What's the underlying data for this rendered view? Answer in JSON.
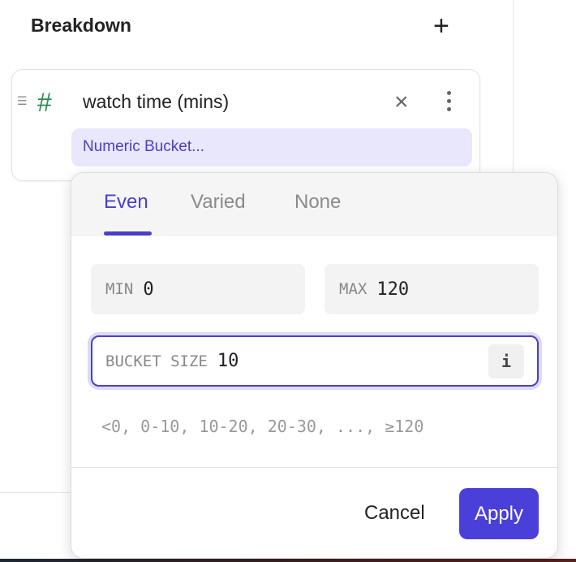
{
  "panel": {
    "title": "Breakdown",
    "add_icon": "plus-icon"
  },
  "breakdown_item": {
    "drag_icon": "drag-handle-icon",
    "type_icon": "hash-icon",
    "type_symbol": "#",
    "field": "watch time (mins)",
    "remove_symbol": "×",
    "bucket_label": "Numeric Bucket..."
  },
  "popover": {
    "tabs": [
      {
        "label": "Even",
        "active": true
      },
      {
        "label": "Varied",
        "active": false
      },
      {
        "label": "None",
        "active": false
      }
    ],
    "min": {
      "label": "MIN",
      "value": "0"
    },
    "max": {
      "label": "MAX",
      "value": "120"
    },
    "bucket_size": {
      "label": "BUCKET SIZE",
      "value": "10",
      "info": "i"
    },
    "preview": "<0, 0-10, 10-20, 20-30, ..., ≥120",
    "cancel_label": "Cancel",
    "apply_label": "Apply"
  },
  "colors": {
    "accent": "#4b3fc9",
    "type_icon": "#2f8a57",
    "chip_bg": "#e9e7fb"
  }
}
